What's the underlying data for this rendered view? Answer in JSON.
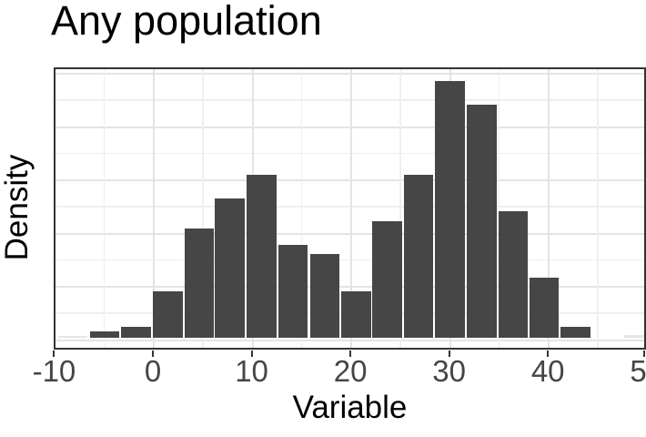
{
  "title": "Any population",
  "x_axis": {
    "label": "Variable",
    "tick_values": [
      -10,
      0,
      10,
      20,
      30,
      40,
      50
    ],
    "tick_labels": [
      "-10",
      "0",
      "10",
      "20",
      "30",
      "40",
      "50"
    ]
  },
  "y_axis": {
    "label": "Density",
    "tick_labels": []
  },
  "chart_data": {
    "type": "bar",
    "subtype": "histogram",
    "title": "Any population",
    "xlabel": "Variable",
    "ylabel": "Density",
    "xlim": [
      -10,
      50
    ],
    "x_ticks": [
      -10,
      0,
      10,
      20,
      30,
      40,
      50
    ],
    "y_ticks_labeled": false,
    "grid": "on",
    "legend": "none",
    "bin_width": 3.18,
    "bin_centers": [
      -8.1,
      -4.9,
      -1.7,
      1.5,
      4.7,
      7.8,
      11.0,
      14.2,
      17.4,
      20.6,
      23.7,
      26.9,
      30.1,
      33.3,
      36.5,
      39.6,
      42.8,
      46.0,
      49.2
    ],
    "densities_relative_to_max": [
      0.007,
      0.026,
      0.041,
      0.18,
      0.427,
      0.543,
      0.635,
      0.362,
      0.325,
      0.18,
      0.455,
      0.635,
      1.0,
      0.908,
      0.494,
      0.235,
      0.041,
      0.0,
      0.011
    ],
    "faint_bin_indices": [
      0,
      18
    ]
  },
  "style": {
    "bar_color": "#464646",
    "faint_bar_color": "#e6e6e6",
    "grid_major_color": "#e4e4e4",
    "grid_minor_color": "#efefef",
    "panel_border_color": "#333333",
    "tick_text_color": "#454545",
    "title_color": "#000000",
    "background": "#ffffff"
  }
}
